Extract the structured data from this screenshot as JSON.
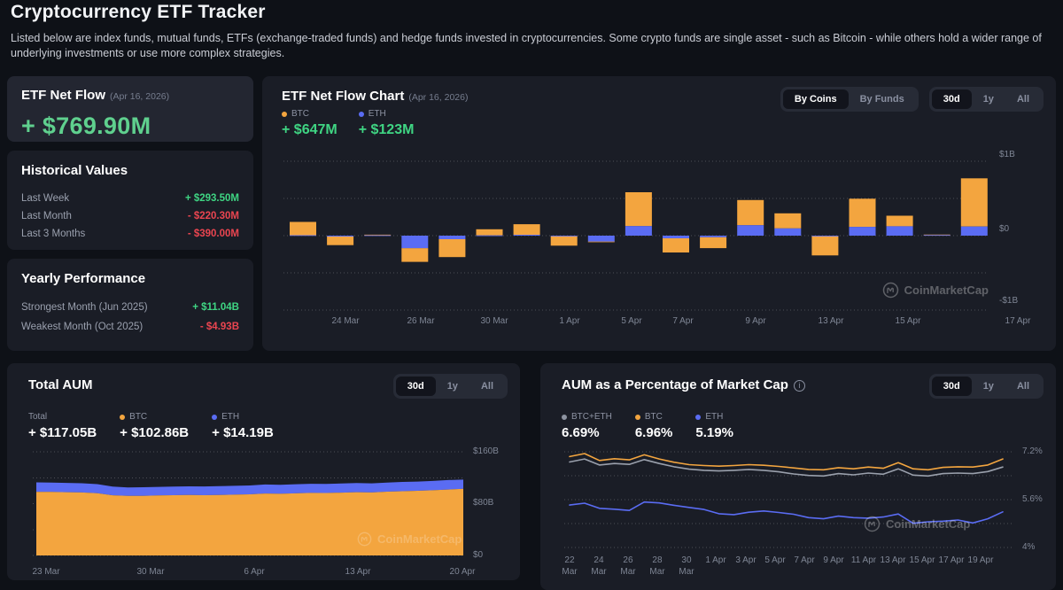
{
  "page": {
    "title": "Cryptocurrency ETF Tracker",
    "description": "Listed below are index funds, mutual funds, ETFs (exchange-traded funds) and hedge funds invested in cryptocurrencies. Some crypto funds are single asset - such as Bitcoin - while others hold a wider range of underlying investments or use more complex strategies."
  },
  "colors": {
    "btc": "#f3a53f",
    "eth": "#5a6cf3",
    "combined": "#9aa0ac",
    "green": "#3fd583",
    "red": "#ea4550"
  },
  "net_flow_card": {
    "title": "ETF Net Flow",
    "date": "(Apr 16, 2026)",
    "value": "+ $769.90M"
  },
  "historical_card": {
    "title": "Historical Values",
    "rows": [
      {
        "label": "Last Week",
        "value": "+ $293.50M",
        "positive": true
      },
      {
        "label": "Last Month",
        "value": "- $220.30M",
        "positive": false
      },
      {
        "label": "Last 3 Months",
        "value": "- $390.00M",
        "positive": false
      }
    ]
  },
  "yearly_card": {
    "title": "Yearly Performance",
    "rows": [
      {
        "label": "Strongest Month (Jun 2025)",
        "value": "+ $11.04B",
        "positive": true
      },
      {
        "label": "Weakest Month (Oct 2025)",
        "value": "- $4.93B",
        "positive": false
      }
    ]
  },
  "net_flow_chart": {
    "title": "ETF Net Flow Chart",
    "date": "(Apr 16, 2026)",
    "group_options": [
      "By Coins",
      "By Funds"
    ],
    "group_active": "By Coins",
    "range_options": [
      "30d",
      "1y",
      "All"
    ],
    "range_active": "30d",
    "legend": [
      {
        "label": "BTC",
        "value": "+ $647M",
        "color": "#f3a53f"
      },
      {
        "label": "ETH",
        "value": "+ $123M",
        "color": "#5a6cf3"
      }
    ],
    "watermark": "CoinMarketCap"
  },
  "aum_card": {
    "title": "Total AUM",
    "range_options": [
      "30d",
      "1y",
      "All"
    ],
    "range_active": "30d",
    "legend": [
      {
        "label": "Total",
        "value": "+ $117.05B",
        "color": null
      },
      {
        "label": "BTC",
        "value": "+ $102.86B",
        "color": "#f3a53f"
      },
      {
        "label": "ETH",
        "value": "+ $14.19B",
        "color": "#5a6cf3"
      }
    ],
    "watermark": "CoinMarketCap"
  },
  "pct_card": {
    "title": "AUM as a Percentage of Market Cap",
    "range_options": [
      "30d",
      "1y",
      "All"
    ],
    "range_active": "30d",
    "legend": [
      {
        "label": "BTC+ETH",
        "value": "6.69%",
        "color": "#8d93a0"
      },
      {
        "label": "BTC",
        "value": "6.96%",
        "color": "#f3a53f"
      },
      {
        "label": "ETH",
        "value": "5.19%",
        "color": "#5a6cf3"
      }
    ],
    "watermark": "CoinMarketCap"
  },
  "chart_data": [
    {
      "type": "bar",
      "stacked": true,
      "title": "ETF Net Flow Chart (Apr 16, 2026)",
      "unit": "$M",
      "ylim": [
        -1000,
        1000
      ],
      "y_ticks": [
        "$1B",
        "$0",
        "-$1B"
      ],
      "grid": "dotted-horizontal",
      "legend_position": "top-left",
      "categories": [
        "23 Mar",
        "24 Mar",
        "25 Mar",
        "26 Mar",
        "27 Mar",
        "30 Mar",
        "31 Mar",
        "1 Apr",
        "2 Apr",
        "5 Apr",
        "6 Apr",
        "7 Apr",
        "8 Apr",
        "9 Apr",
        "10 Apr",
        "13 Apr",
        "14 Apr",
        "15 Apr",
        "16 Apr"
      ],
      "x_tick_labels": [
        "24 Mar",
        "26 Mar",
        "30 Mar",
        "1 Apr",
        "5 Apr",
        "7 Apr",
        "9 Apr",
        "13 Apr",
        "15 Apr",
        "17 Apr"
      ],
      "series": [
        {
          "name": "BTC",
          "color": "#f3a53f",
          "values": [
            178,
            -115,
            8,
            -185,
            -240,
            82,
            142,
            -128,
            -8,
            455,
            -190,
            -148,
            338,
            202,
            -262,
            378,
            142,
            6,
            647
          ]
        },
        {
          "name": "ETH",
          "color": "#5a6cf3",
          "values": [
            6,
            -12,
            5,
            -168,
            -48,
            4,
            12,
            -6,
            -78,
            128,
            -36,
            -20,
            140,
            98,
            -4,
            118,
            126,
            8,
            123
          ]
        }
      ]
    },
    {
      "type": "area",
      "stacked": true,
      "title": "Total AUM",
      "unit": "$B",
      "ylim": [
        0,
        160
      ],
      "y_ticks": [
        "$160B",
        "$80B",
        "$0"
      ],
      "grid": "dotted-horizontal",
      "x_tick_labels": [
        "23 Mar",
        "30 Mar",
        "6 Apr",
        "13 Apr",
        "20 Apr"
      ],
      "series": [
        {
          "name": "BTC",
          "color": "#f3a53f",
          "values": [
            98.2,
            98.0,
            97.6,
            97.2,
            96.2,
            92.8,
            91.9,
            92.1,
            92.6,
            93.0,
            93.2,
            93.0,
            93.4,
            93.8,
            94.3,
            95.6,
            95.2,
            95.9,
            96.6,
            96.4,
            97.0,
            97.6,
            97.2,
            98.4,
            99.2,
            99.8,
            100.6,
            101.8,
            102.86
          ]
        },
        {
          "name": "ETH",
          "color": "#5a6cf3",
          "values": [
            14.6,
            14.5,
            14.4,
            14.2,
            13.9,
            13.4,
            13.1,
            13.2,
            13.3,
            13.4,
            13.5,
            13.5,
            13.6,
            13.7,
            13.8,
            14.0,
            13.9,
            14.0,
            14.1,
            14.0,
            14.1,
            14.2,
            14.1,
            14.2,
            14.3,
            14.3,
            14.4,
            14.6,
            14.19
          ]
        }
      ],
      "current_total": 117.05
    },
    {
      "type": "line",
      "title": "AUM as a Percentage of Market Cap",
      "unit": "%",
      "ylim": [
        4,
        7.2
      ],
      "y_ticks": [
        "7.2%",
        "5.6%",
        "4%"
      ],
      "grid": "dotted-horizontal",
      "x_tick_labels": [
        "22\nMar",
        "24\nMar",
        "26\nMar",
        "28\nMar",
        "30\nMar",
        "1 Apr",
        "3 Apr",
        "5 Apr",
        "7 Apr",
        "9 Apr",
        "11 Apr",
        "13 Apr",
        "15 Apr",
        "17 Apr",
        "19 Apr"
      ],
      "series": [
        {
          "name": "BTC+ETH",
          "color": "#9aa0ac",
          "values": [
            6.86,
            6.96,
            6.76,
            6.81,
            6.78,
            6.94,
            6.81,
            6.7,
            6.62,
            6.58,
            6.56,
            6.58,
            6.61,
            6.58,
            6.53,
            6.46,
            6.41,
            6.39,
            6.47,
            6.43,
            6.49,
            6.45,
            6.63,
            6.42,
            6.39,
            6.47,
            6.49,
            6.47,
            6.54,
            6.69
          ]
        },
        {
          "name": "BTC",
          "color": "#f3a53f",
          "values": [
            7.04,
            7.14,
            6.91,
            6.97,
            6.93,
            7.1,
            6.96,
            6.85,
            6.77,
            6.74,
            6.72,
            6.74,
            6.77,
            6.75,
            6.71,
            6.66,
            6.61,
            6.6,
            6.67,
            6.63,
            6.69,
            6.65,
            6.84,
            6.63,
            6.6,
            6.68,
            6.7,
            6.69,
            6.76,
            6.96
          ]
        },
        {
          "name": "ETH",
          "color": "#5a6cf3",
          "values": [
            5.42,
            5.48,
            5.31,
            5.28,
            5.24,
            5.52,
            5.49,
            5.41,
            5.34,
            5.27,
            5.13,
            5.1,
            5.18,
            5.22,
            5.17,
            5.11,
            5.0,
            4.96,
            5.05,
            5.0,
            4.98,
            5.02,
            5.12,
            4.81,
            4.86,
            4.88,
            4.92,
            4.82,
            4.96,
            5.19
          ]
        }
      ]
    }
  ]
}
